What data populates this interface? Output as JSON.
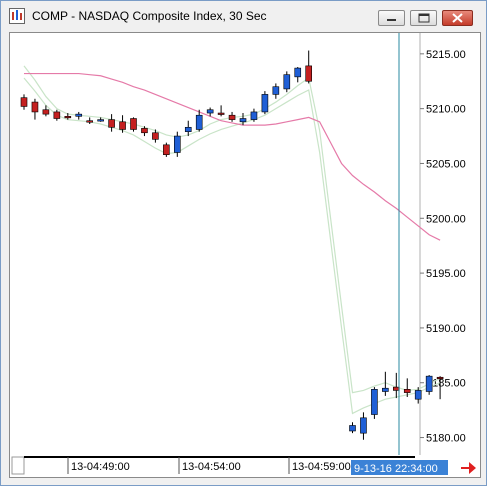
{
  "window": {
    "title": "COMP - NASDAQ Composite Index, 30 Sec"
  },
  "chart_data": {
    "type": "candlestick",
    "y_ticks": [
      "5215.00",
      "5210.00",
      "5205.00",
      "5200.00",
      "5195.00",
      "5190.00",
      "5185.00",
      "5180.00"
    ],
    "ylim": [
      5178.5,
      5216.9
    ],
    "x_labels": [
      "13-04:49:00",
      "13-04:54:00",
      "13-04:59:00"
    ],
    "cursor_label": "9-13-16 22:34:00",
    "colors": {
      "up": "#1f5fd6",
      "down": "#c42020",
      "flat": "#c42020",
      "ma_slow": "#e57aa8",
      "band": "#c9e4c8",
      "cursor": "#2a8aa0"
    },
    "candles": [
      {
        "o": 5211.0,
        "h": 5211.3,
        "l": 5209.9,
        "c": 5210.2
      },
      {
        "o": 5210.6,
        "h": 5210.9,
        "l": 5209.0,
        "c": 5209.7
      },
      {
        "o": 5209.9,
        "h": 5210.3,
        "l": 5209.3,
        "c": 5209.5
      },
      {
        "o": 5209.7,
        "h": 5209.9,
        "l": 5208.9,
        "c": 5209.1
      },
      {
        "o": 5209.3,
        "h": 5209.6,
        "l": 5209.0,
        "c": 5209.3
      },
      {
        "o": 5209.3,
        "h": 5209.7,
        "l": 5209.0,
        "c": 5209.5
      },
      {
        "o": 5208.9,
        "h": 5209.2,
        "l": 5208.6,
        "c": 5208.9
      },
      {
        "o": 5208.9,
        "h": 5209.2,
        "l": 5208.8,
        "c": 5209.0
      },
      {
        "o": 5209.0,
        "h": 5209.5,
        "l": 5207.9,
        "c": 5208.3
      },
      {
        "o": 5208.8,
        "h": 5209.4,
        "l": 5207.8,
        "c": 5208.1
      },
      {
        "o": 5209.1,
        "h": 5209.2,
        "l": 5207.9,
        "c": 5208.1
      },
      {
        "o": 5208.2,
        "h": 5208.4,
        "l": 5207.5,
        "c": 5207.8
      },
      {
        "o": 5207.8,
        "h": 5208.1,
        "l": 5206.9,
        "c": 5207.2
      },
      {
        "o": 5206.7,
        "h": 5206.9,
        "l": 5205.6,
        "c": 5205.8
      },
      {
        "o": 5206.0,
        "h": 5207.9,
        "l": 5205.6,
        "c": 5207.5
      },
      {
        "o": 5207.9,
        "h": 5208.9,
        "l": 5207.5,
        "c": 5208.3
      },
      {
        "o": 5208.1,
        "h": 5209.9,
        "l": 5207.9,
        "c": 5209.4
      },
      {
        "o": 5209.6,
        "h": 5210.1,
        "l": 5209.3,
        "c": 5209.9
      },
      {
        "o": 5209.6,
        "h": 5210.3,
        "l": 5209.3,
        "c": 5209.6
      },
      {
        "o": 5209.4,
        "h": 5209.7,
        "l": 5208.8,
        "c": 5209.0
      },
      {
        "o": 5208.8,
        "h": 5209.6,
        "l": 5208.5,
        "c": 5209.1
      },
      {
        "o": 5209.0,
        "h": 5210.0,
        "l": 5208.8,
        "c": 5209.7
      },
      {
        "o": 5209.7,
        "h": 5211.6,
        "l": 5209.5,
        "c": 5211.3
      },
      {
        "o": 5211.3,
        "h": 5212.3,
        "l": 5210.9,
        "c": 5212.0
      },
      {
        "o": 5211.8,
        "h": 5213.4,
        "l": 5211.5,
        "c": 5213.1
      },
      {
        "o": 5212.9,
        "h": 5213.8,
        "l": 5212.4,
        "c": 5213.7
      },
      {
        "o": 5213.9,
        "h": 5215.3,
        "l": 5212.3,
        "c": 5212.5
      },
      null,
      null,
      null,
      {
        "o": 5180.6,
        "h": 5181.4,
        "l": 5180.4,
        "c": 5181.1
      },
      {
        "o": 5180.4,
        "h": 5182.3,
        "l": 5179.8,
        "c": 5181.8
      },
      {
        "o": 5182.1,
        "h": 5184.6,
        "l": 5181.7,
        "c": 5184.4
      },
      {
        "o": 5184.2,
        "h": 5186.0,
        "l": 5183.8,
        "c": 5184.5
      },
      {
        "o": 5184.6,
        "h": 5185.9,
        "l": 5183.6,
        "c": 5184.3
      },
      {
        "o": 5184.4,
        "h": 5185.4,
        "l": 5183.7,
        "c": 5184.1
      },
      {
        "o": 5183.5,
        "h": 5184.6,
        "l": 5183.1,
        "c": 5184.3
      },
      {
        "o": 5184.2,
        "h": 5185.7,
        "l": 5183.9,
        "c": 5185.6
      },
      {
        "o": 5185.5,
        "h": 5185.6,
        "l": 5183.5,
        "c": 5185.4
      }
    ],
    "ma_slow": [
      5213.2,
      5213.2,
      5213.2,
      5213.2,
      5213.2,
      5213.2,
      5213.1,
      5213.0,
      5212.7,
      5212.4,
      5212.0,
      5211.7,
      5211.3,
      5210.9,
      5210.5,
      5210.1,
      5209.7,
      5209.3,
      5208.9,
      5208.7,
      5208.5,
      5208.5,
      5208.5,
      5208.6,
      5208.8,
      5209.0,
      5209.2,
      5208.8,
      5206.9,
      5205.0,
      5203.9,
      5203.1,
      5202.4,
      5201.6,
      5200.9,
      5200.1,
      5199.3,
      5198.5,
      5198.0
    ],
    "ma_band_upper": [
      5213.9,
      5212.6,
      5211.1,
      5210.0,
      5209.5,
      5209.4,
      5209.3,
      5209.2,
      5209.0,
      5208.8,
      5208.6,
      5208.3,
      5208.0,
      5207.6,
      5207.4,
      5207.6,
      5208.0,
      5208.6,
      5209.0,
      5209.2,
      5209.3,
      5209.5,
      5210.0,
      5210.6,
      5211.3,
      5212.1,
      5212.8,
      5208.0,
      5200.0,
      5192.0,
      5184.1,
      5184.3,
      5184.7,
      5185.0,
      5184.6,
      5184.3,
      5184.4,
      5184.9,
      5185.4
    ],
    "ma_band_lower": [
      5212.8,
      5211.6,
      5210.3,
      5209.4,
      5209.0,
      5208.9,
      5208.8,
      5208.6,
      5208.3,
      5208.0,
      5207.6,
      5207.0,
      5206.4,
      5205.9,
      5206.0,
      5206.6,
      5207.2,
      5207.7,
      5208.1,
      5208.4,
      5208.7,
      5209.0,
      5209.4,
      5210.0,
      5210.6,
      5211.2,
      5211.7,
      5206.0,
      5198.0,
      5190.0,
      5182.2,
      5182.7,
      5183.1,
      5183.5,
      5183.7,
      5183.9,
      5184.1,
      5184.6,
      5185.0
    ]
  }
}
